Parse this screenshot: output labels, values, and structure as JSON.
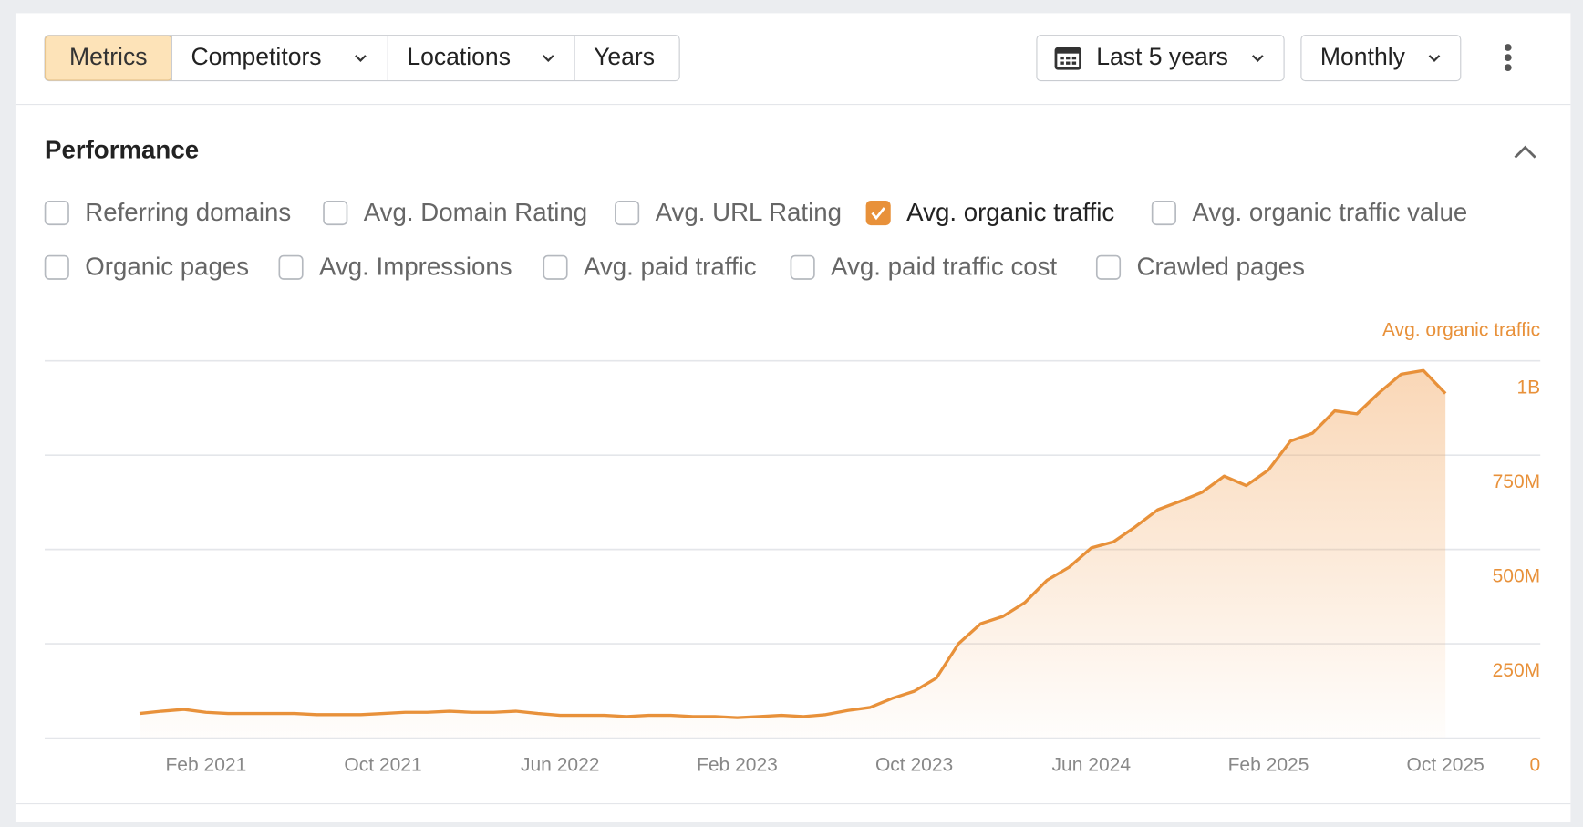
{
  "toolbar": {
    "tabs": [
      "Metrics",
      "Competitors",
      "Locations",
      "Years"
    ],
    "date_range": "Last 5 years",
    "interval": "Monthly"
  },
  "section": {
    "title": "Performance",
    "checkboxes": [
      {
        "label": "Referring domains",
        "checked": false
      },
      {
        "label": "Avg. Domain Rating",
        "checked": false
      },
      {
        "label": "Avg. URL Rating",
        "checked": false
      },
      {
        "label": "Avg. organic traffic",
        "checked": true
      },
      {
        "label": "Avg. organic traffic value",
        "checked": false
      },
      {
        "label": "Organic pages",
        "checked": false
      },
      {
        "label": "Avg. Impressions",
        "checked": false
      },
      {
        "label": "Avg. paid traffic",
        "checked": false
      },
      {
        "label": "Avg. paid traffic cost",
        "checked": false
      },
      {
        "label": "Crawled pages",
        "checked": false
      }
    ]
  },
  "chart_data": {
    "type": "area",
    "y_axis_label": "Avg. organic traffic",
    "color": "#e8913a",
    "grid": true,
    "x": [
      "Nov 2020",
      "Dec 2020",
      "Jan 2021",
      "Feb 2021",
      "Mar 2021",
      "Apr 2021",
      "May 2021",
      "Jun 2021",
      "Jul 2021",
      "Aug 2021",
      "Sep 2021",
      "Oct 2021",
      "Nov 2021",
      "Dec 2021",
      "Jan 2022",
      "Feb 2022",
      "Mar 2022",
      "Apr 2022",
      "May 2022",
      "Jun 2022",
      "Jul 2022",
      "Aug 2022",
      "Sep 2022",
      "Oct 2022",
      "Nov 2022",
      "Dec 2022",
      "Jan 2023",
      "Feb 2023",
      "Mar 2023",
      "Apr 2023",
      "May 2023",
      "Jun 2023",
      "Jul 2023",
      "Aug 2023",
      "Sep 2023",
      "Oct 2023",
      "Nov 2023",
      "Dec 2023",
      "Jan 2024",
      "Feb 2024",
      "Mar 2024",
      "Apr 2024",
      "May 2024",
      "Jun 2024",
      "Jul 2024",
      "Aug 2024",
      "Sep 2024",
      "Oct 2024",
      "Nov 2024",
      "Dec 2024",
      "Jan 2025",
      "Feb 2025",
      "Mar 2025",
      "Apr 2025",
      "May 2025",
      "Jun 2025",
      "Jul 2025",
      "Aug 2025",
      "Sep 2025",
      "Oct 2025"
    ],
    "values": [
      64000000,
      70000000,
      75000000,
      67000000,
      64000000,
      64000000,
      64000000,
      64000000,
      61000000,
      61000000,
      61000000,
      64000000,
      67000000,
      67000000,
      70000000,
      67000000,
      67000000,
      70000000,
      64000000,
      59000000,
      59000000,
      59000000,
      56000000,
      59000000,
      59000000,
      56000000,
      56000000,
      53000000,
      56000000,
      59000000,
      56000000,
      61000000,
      72000000,
      80000000,
      104000000,
      123000000,
      158000000,
      249000000,
      302000000,
      321000000,
      358000000,
      417000000,
      452000000,
      503000000,
      519000000,
      559000000,
      604000000,
      626000000,
      650000000,
      693000000,
      668000000,
      709000000,
      786000000,
      807000000,
      866000000,
      858000000,
      914000000,
      963000000,
      973000000,
      912000000
    ],
    "xticks": [
      "Feb 2021",
      "Oct 2021",
      "Jun 2022",
      "Feb 2023",
      "Oct 2023",
      "Jun 2024",
      "Feb 2025",
      "Oct 2025"
    ],
    "ylim": [
      0,
      1000000000
    ],
    "yticks": [
      0,
      {
        "value": 250000000,
        "label": "250M"
      },
      {
        "value": 500000000,
        "label": "500M"
      },
      {
        "value": 750000000,
        "label": "750M"
      },
      {
        "value": 1000000000,
        "label": "1B"
      }
    ]
  }
}
